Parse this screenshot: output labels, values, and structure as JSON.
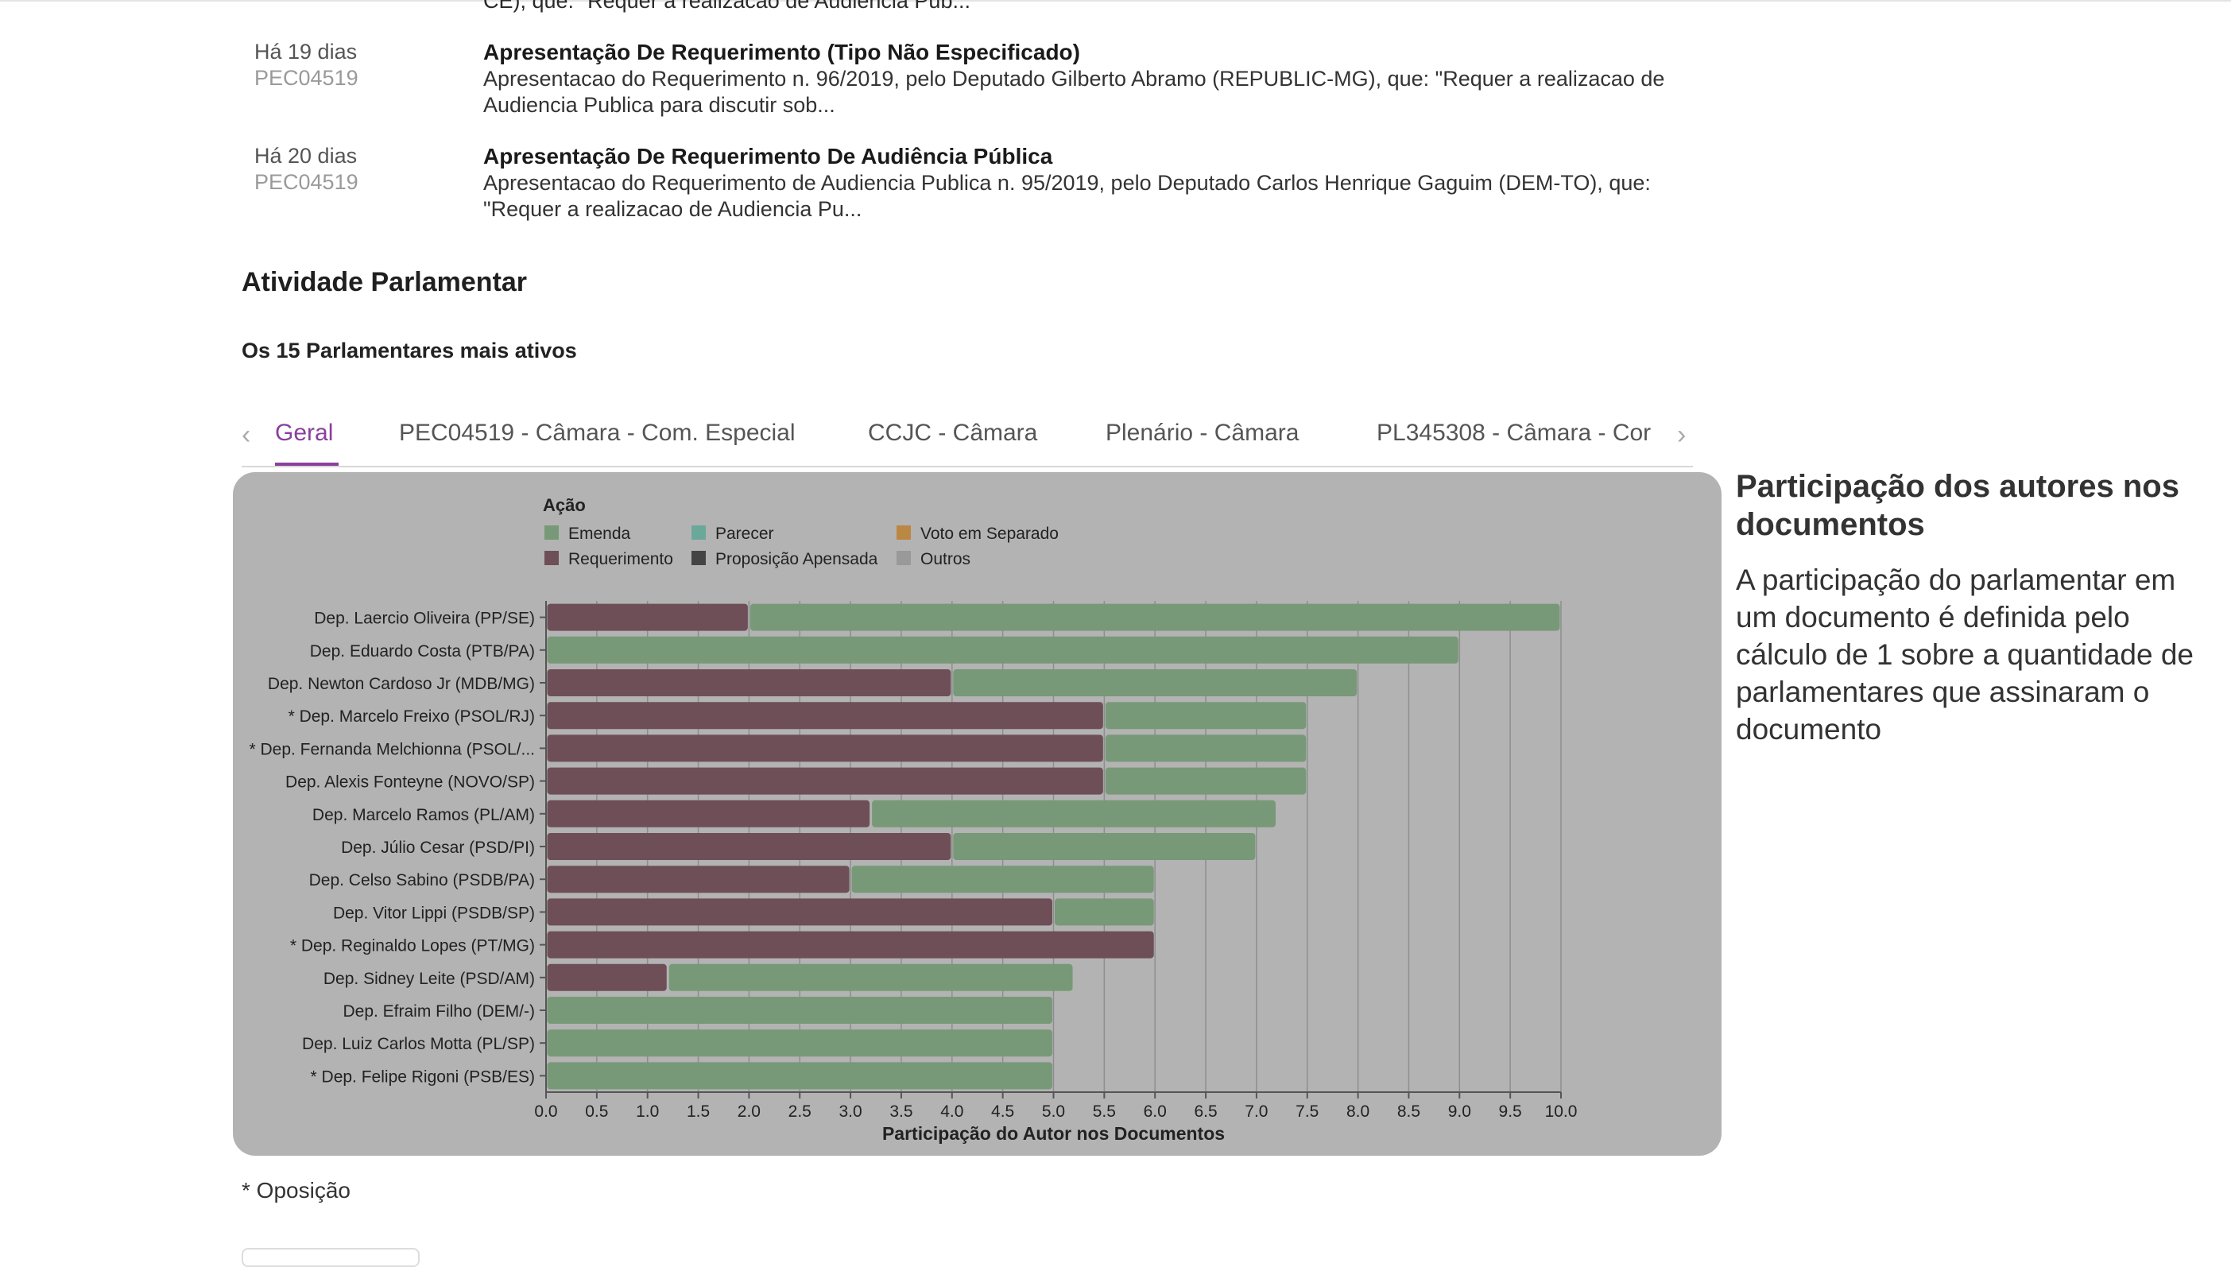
{
  "feed": {
    "cut_text": "CE), que: \"Requer a realizacao de Audiencia Pub...",
    "items": [
      {
        "date": "Há 19 dias",
        "code": "PEC04519",
        "title": "Apresentação De Requerimento (Tipo Não Especificado)",
        "desc": "Apresentacao do Requerimento n. 96/2019, pelo Deputado Gilberto Abramo (REPUBLIC-MG), que: \"Requer a realizacao de Audiencia Publica para discutir sob..."
      },
      {
        "date": "Há 20 dias",
        "code": "PEC04519",
        "title": "Apresentação De Requerimento De Audiência Pública",
        "desc": "Apresentacao do Requerimento de Audiencia Publica n. 95/2019, pelo Deputado Carlos Henrique Gaguim (DEM-TO), que: \"Requer a realizacao de Audiencia Pu..."
      }
    ]
  },
  "section": {
    "title": "Atividade Parlamentar",
    "subtitle": "Os 15 Parlamentares mais ativos"
  },
  "tabs": {
    "left_arrow": "‹",
    "right_arrow": "›",
    "items": [
      {
        "label": "Geral",
        "active": true
      },
      {
        "label": "PEC04519 - Câmara - Com. Especial",
        "active": false
      },
      {
        "label": "CCJC - Câmara",
        "active": false
      },
      {
        "label": "Plenário - Câmara",
        "active": false
      },
      {
        "label": "PL345308 - Câmara - Cor",
        "active": false
      }
    ]
  },
  "chart_data": {
    "type": "bar",
    "orientation": "horizontal",
    "stacked": true,
    "legend_title": "Ação",
    "legend": [
      {
        "name": "Emenda",
        "color": "#779977"
      },
      {
        "name": "Parecer",
        "color": "#6aa89a"
      },
      {
        "name": "Voto em Separado",
        "color": "#bb8844"
      },
      {
        "name": "Requerimento",
        "color": "#6e4f57"
      },
      {
        "name": "Proposição Apensada",
        "color": "#444444"
      },
      {
        "name": "Outros",
        "color": "#999999"
      }
    ],
    "categories": [
      "Dep. Laercio Oliveira (PP/SE)",
      "Dep. Eduardo Costa (PTB/PA)",
      "Dep. Newton Cardoso Jr (MDB/MG)",
      "* Dep. Marcelo Freixo (PSOL/RJ)",
      "* Dep. Fernanda Melchionna (PSOL/...",
      "Dep. Alexis Fonteyne (NOVO/SP)",
      "Dep. Marcelo Ramos (PL/AM)",
      "Dep. Júlio Cesar (PSD/PI)",
      "Dep. Celso Sabino (PSDB/PA)",
      "Dep. Vitor Lippi (PSDB/SP)",
      "* Dep. Reginaldo Lopes (PT/MG)",
      "Dep. Sidney Leite (PSD/AM)",
      "Dep. Efraim Filho (DEM/-)",
      "Dep. Luiz Carlos Motta (PL/SP)",
      "* Dep. Felipe Rigoni (PSB/ES)"
    ],
    "series": [
      {
        "name": "Requerimento",
        "color": "#6e4f57",
        "values": [
          2,
          0,
          4,
          5.5,
          5.5,
          5.5,
          3.2,
          4,
          3,
          5,
          6,
          1.2,
          0,
          0,
          0
        ]
      },
      {
        "name": "Emenda",
        "color": "#779977",
        "values": [
          8,
          9,
          4,
          2,
          2,
          2,
          4,
          3,
          3,
          1,
          0,
          4,
          5,
          5,
          5
        ]
      }
    ],
    "xlabel": "Participação do Autor nos Documentos",
    "xlim": [
      0,
      10
    ],
    "xticks": [
      "0.0",
      "0.5",
      "1.0",
      "1.5",
      "2.0",
      "2.5",
      "3.0",
      "3.5",
      "4.0",
      "4.5",
      "5.0",
      "5.5",
      "6.0",
      "6.5",
      "7.0",
      "7.5",
      "8.0",
      "8.5",
      "9.0",
      "9.5",
      "10.0"
    ],
    "grid": true
  },
  "side": {
    "title": "Participação dos autores nos documentos",
    "text": "A participação do parlamentar em um documento é definida pelo cálculo de 1 sobre a quantidade de parlamentares que assinaram o documento"
  },
  "footnote": "* Oposição"
}
